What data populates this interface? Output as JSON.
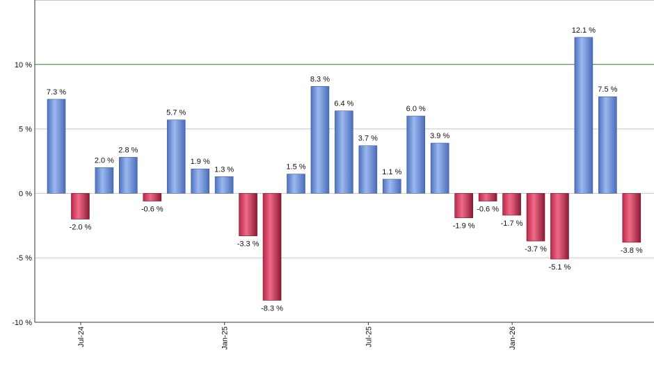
{
  "chart_data": {
    "type": "bar",
    "title": "",
    "xlabel": "",
    "ylabel": "",
    "ylim": [
      -10,
      15
    ],
    "yticks": [
      -10,
      -5,
      0,
      5,
      10
    ],
    "ytick_labels": [
      "-10 %",
      "-5 %",
      "0 %",
      "5 %",
      "10 %"
    ],
    "reference_line": 10,
    "grid": true,
    "values": [
      7.3,
      -2.0,
      2.0,
      2.8,
      -0.6,
      5.7,
      1.9,
      1.3,
      -3.3,
      -8.3,
      1.5,
      8.3,
      6.4,
      3.7,
      1.1,
      6.0,
      3.9,
      -1.9,
      -0.6,
      -1.7,
      -3.7,
      -5.1,
      12.1,
      7.5,
      -3.8
    ],
    "value_labels": [
      "7.3 %",
      "-2.0 %",
      "2.0 %",
      "2.8 %",
      "-0.6 %",
      "5.7 %",
      "1.9 %",
      "1.3 %",
      "-3.3 %",
      "-8.3 %",
      "1.5 %",
      "8.3 %",
      "6.4 %",
      "3.7 %",
      "1.1 %",
      "6.0 %",
      "3.9 %",
      "-1.9 %",
      "-0.6 %",
      "-1.7 %",
      "-3.7 %",
      "-5.1 %",
      "12.1 %",
      "7.5 %",
      "-3.8 %"
    ],
    "x_tick_labels": [
      {
        "label": "Jul-24",
        "index": 0
      },
      {
        "label": "Jan-25",
        "index": 6
      },
      {
        "label": "Jul-25",
        "index": 12
      },
      {
        "label": "Jan-26",
        "index": 18
      }
    ],
    "colors": {
      "positive": "#7b9ee0",
      "positive_dark": "#4a6cb8",
      "negative": "#e05070",
      "negative_dark": "#8a1a35",
      "reference_line": "#2e7d32",
      "grid": "#c8c8c8",
      "axis": "#333333"
    }
  }
}
